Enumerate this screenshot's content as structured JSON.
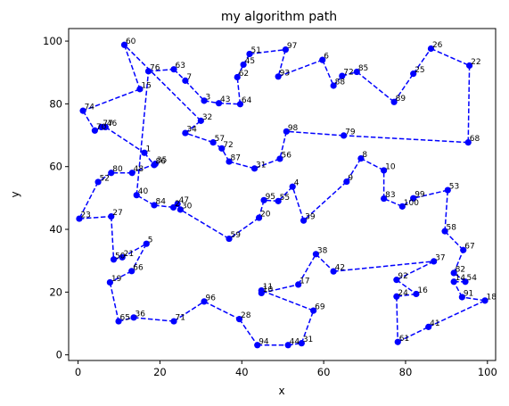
{
  "chart_data": {
    "type": "scatter",
    "title": "my algorithm path",
    "xlabel": "x",
    "ylabel": "y",
    "xlim": [
      -2.3,
      102
    ],
    "ylim": [
      -1.8,
      104
    ],
    "xticks": [
      0,
      20,
      40,
      60,
      80,
      100
    ],
    "yticks": [
      0,
      20,
      40,
      60,
      80,
      100
    ],
    "grid": false,
    "marker_color": "#0000ff",
    "line_color": "#0000ff",
    "line_style": "dashed",
    "points": [
      {
        "label": "60",
        "x": 11.3,
        "y": 98.8
      },
      {
        "label": "15",
        "x": 15.1,
        "y": 84.7
      },
      {
        "label": "74",
        "x": 1.2,
        "y": 77.8
      },
      {
        "label": "70",
        "x": 4.1,
        "y": 71.5
      },
      {
        "label": "77",
        "x": 5.7,
        "y": 72.6
      },
      {
        "label": "46",
        "x": 6.7,
        "y": 72.6
      },
      {
        "label": "1",
        "x": 16.2,
        "y": 64.4
      },
      {
        "label": "86",
        "x": 18.6,
        "y": 60.5
      },
      {
        "label": "35",
        "x": 18.9,
        "y": 60.9
      },
      {
        "label": "48",
        "x": 13.2,
        "y": 58.0
      },
      {
        "label": "80",
        "x": 8.1,
        "y": 58.0
      },
      {
        "label": "52",
        "x": 4.9,
        "y": 55.1
      },
      {
        "label": "23",
        "x": 0.3,
        "y": 43.4
      },
      {
        "label": "27",
        "x": 8.1,
        "y": 44.1
      },
      {
        "label": "50",
        "x": 8.7,
        "y": 30.4
      },
      {
        "label": "21",
        "x": 10.8,
        "y": 31.1
      },
      {
        "label": "5",
        "x": 16.7,
        "y": 35.4
      },
      {
        "label": "66",
        "x": 13.1,
        "y": 26.7
      },
      {
        "label": "19",
        "x": 7.8,
        "y": 23.1
      },
      {
        "label": "65",
        "x": 9.9,
        "y": 10.7
      },
      {
        "label": "36",
        "x": 13.6,
        "y": 11.9
      },
      {
        "label": "71",
        "x": 23.4,
        "y": 10.7
      },
      {
        "label": "96",
        "x": 30.8,
        "y": 17.0
      },
      {
        "label": "28",
        "x": 39.4,
        "y": 11.4
      },
      {
        "label": "94",
        "x": 43.8,
        "y": 3.1
      },
      {
        "label": "44",
        "x": 51.3,
        "y": 3.1
      },
      {
        "label": "31",
        "x": 54.6,
        "y": 3.7
      },
      {
        "label": "69",
        "x": 57.5,
        "y": 14.1
      },
      {
        "label": "11",
        "x": 44.8,
        "y": 20.5
      },
      {
        "label": "10",
        "x": 44.8,
        "y": 19.7
      },
      {
        "label": "17",
        "x": 53.8,
        "y": 22.4
      },
      {
        "label": "38",
        "x": 58.1,
        "y": 32.1
      },
      {
        "label": "42",
        "x": 62.4,
        "y": 26.6
      },
      {
        "label": "37",
        "x": 86.9,
        "y": 29.8
      },
      {
        "label": "92",
        "x": 77.8,
        "y": 23.9
      },
      {
        "label": "16",
        "x": 82.6,
        "y": 19.4
      },
      {
        "label": "24",
        "x": 77.8,
        "y": 18.6
      },
      {
        "label": "61",
        "x": 78.1,
        "y": 4.1
      },
      {
        "label": "41",
        "x": 85.6,
        "y": 8.9
      },
      {
        "label": "18",
        "x": 99.4,
        "y": 17.3
      },
      {
        "label": "91",
        "x": 93.8,
        "y": 18.4
      },
      {
        "label": "14",
        "x": 91.8,
        "y": 23.3
      },
      {
        "label": "54",
        "x": 94.6,
        "y": 23.3
      },
      {
        "label": "82",
        "x": 91.8,
        "y": 26.1
      },
      {
        "label": "67",
        "x": 94.1,
        "y": 33.4
      },
      {
        "label": "58",
        "x": 89.6,
        "y": 39.4
      },
      {
        "label": "53",
        "x": 90.3,
        "y": 52.5
      },
      {
        "label": "99",
        "x": 81.9,
        "y": 49.9
      },
      {
        "label": "100",
        "x": 79.2,
        "y": 47.3
      },
      {
        "label": "83",
        "x": 74.7,
        "y": 49.8
      },
      {
        "label": "10",
        "x": 74.7,
        "y": 58.8
      },
      {
        "label": "8",
        "x": 69.1,
        "y": 62.6
      },
      {
        "label": "9",
        "x": 65.6,
        "y": 55.2
      },
      {
        "label": "39",
        "x": 55.1,
        "y": 42.8
      },
      {
        "label": "4",
        "x": 52.4,
        "y": 53.6
      },
      {
        "label": "55",
        "x": 48.9,
        "y": 49.0
      },
      {
        "label": "95",
        "x": 45.4,
        "y": 49.3
      },
      {
        "label": "20",
        "x": 44.2,
        "y": 43.7
      },
      {
        "label": "59",
        "x": 36.9,
        "y": 37.0
      },
      {
        "label": "30",
        "x": 25.0,
        "y": 46.3
      },
      {
        "label": "47",
        "x": 24.3,
        "y": 48.1
      },
      {
        "label": "2",
        "x": 23.3,
        "y": 47.0
      },
      {
        "label": "84",
        "x": 18.6,
        "y": 47.7
      },
      {
        "label": "40",
        "x": 14.3,
        "y": 50.9
      },
      {
        "label": "76",
        "x": 17.2,
        "y": 90.4
      },
      {
        "label": "63",
        "x": 23.4,
        "y": 91.0
      },
      {
        "label": "7",
        "x": 26.2,
        "y": 87.4
      },
      {
        "label": "3",
        "x": 30.8,
        "y": 81.0
      },
      {
        "label": "43",
        "x": 34.4,
        "y": 80.2
      },
      {
        "label": "64",
        "x": 39.6,
        "y": 79.9
      },
      {
        "label": "62",
        "x": 38.9,
        "y": 88.5
      },
      {
        "label": "45",
        "x": 40.4,
        "y": 92.5
      },
      {
        "label": "51",
        "x": 41.9,
        "y": 95.9
      },
      {
        "label": "97",
        "x": 50.7,
        "y": 97.3
      },
      {
        "label": "93",
        "x": 48.9,
        "y": 88.7
      },
      {
        "label": "6",
        "x": 59.7,
        "y": 94.0
      },
      {
        "label": "88",
        "x": 62.4,
        "y": 85.8
      },
      {
        "label": "72",
        "x": 64.5,
        "y": 88.9
      },
      {
        "label": "85",
        "x": 68.1,
        "y": 90.2
      },
      {
        "label": "89",
        "x": 77.2,
        "y": 80.6
      },
      {
        "label": "25",
        "x": 81.9,
        "y": 89.6
      },
      {
        "label": "26",
        "x": 86.2,
        "y": 97.6
      },
      {
        "label": "22",
        "x": 95.6,
        "y": 92.2
      },
      {
        "label": "68",
        "x": 95.3,
        "y": 67.7
      },
      {
        "label": "79",
        "x": 64.9,
        "y": 69.9
      },
      {
        "label": "98",
        "x": 50.9,
        "y": 71.2
      },
      {
        "label": "56",
        "x": 49.3,
        "y": 62.5
      },
      {
        "label": "31",
        "x": 43.1,
        "y": 59.4
      },
      {
        "label": "87",
        "x": 36.9,
        "y": 61.6
      },
      {
        "label": "72",
        "x": 35.1,
        "y": 65.8
      },
      {
        "label": "57",
        "x": 33.0,
        "y": 67.7
      },
      {
        "label": "34",
        "x": 26.2,
        "y": 70.7
      },
      {
        "label": "32",
        "x": 30.0,
        "y": 74.6
      },
      {
        "label": "60",
        "x": 11.3,
        "y": 98.8
      }
    ]
  }
}
